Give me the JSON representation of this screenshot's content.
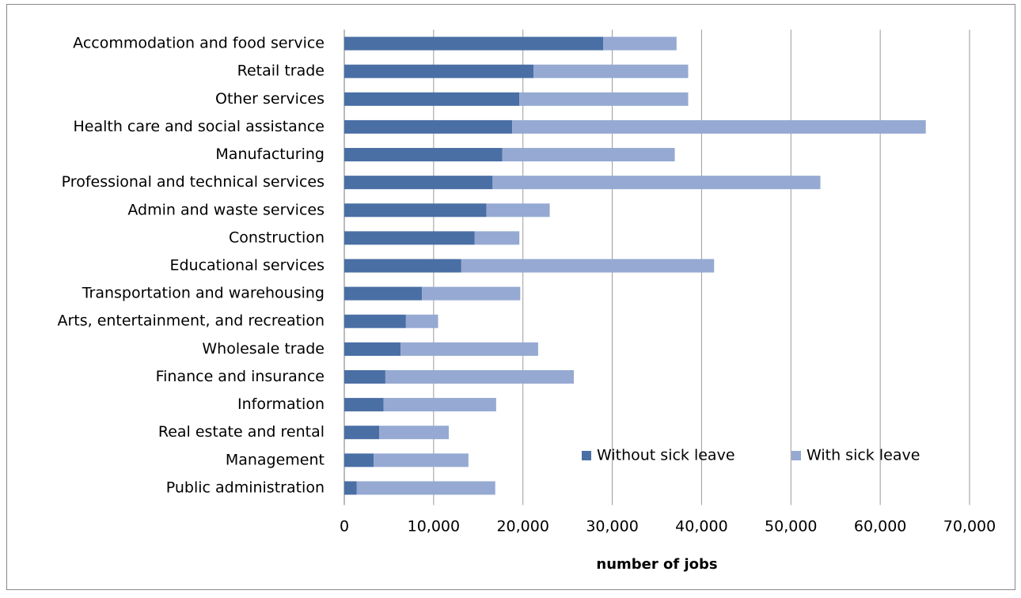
{
  "chart_data": {
    "type": "stacked-barh",
    "x_label": "number of jobs",
    "categories": [
      "Accommodation and food service",
      "Retail trade",
      "Other services",
      "Health care and social assistance",
      "Manufacturing",
      "Professional and technical services",
      "Admin and waste services",
      "Construction",
      "Educational services",
      "Transportation and warehousing",
      "Arts, entertainment, and recreation",
      "Wholesale trade",
      "Finance and insurance",
      "Information",
      "Real estate and rental",
      "Management",
      "Public administration"
    ],
    "series": [
      {
        "name": "Without sick leave",
        "color": "#4a6fa5",
        "values": [
          29000,
          21200,
          19600,
          18800,
          17700,
          16600,
          15900,
          14600,
          13100,
          8700,
          6900,
          6300,
          4600,
          4400,
          3900,
          3300,
          1400
        ]
      },
      {
        "name": "With sick leave",
        "color": "#95a9d2",
        "values": [
          8200,
          17300,
          18900,
          46300,
          19300,
          36700,
          7100,
          5000,
          28300,
          11000,
          3600,
          15400,
          21100,
          12600,
          7800,
          10600,
          15500
        ]
      }
    ],
    "xlim": [
      0,
      70000
    ],
    "xticks": [
      0,
      {
        "value": 10000,
        "label": "10,000"
      },
      {
        "value": 20000,
        "label": "20,000"
      },
      {
        "value": 30000,
        "label": "30,000"
      },
      {
        "value": 40000,
        "label": "40,000"
      },
      {
        "value": 50000,
        "label": "50,000"
      },
      {
        "value": 60000,
        "label": "60,000"
      },
      {
        "value": 70000,
        "label": "70,000"
      }
    ],
    "grid": true,
    "legend": "lower-right"
  }
}
